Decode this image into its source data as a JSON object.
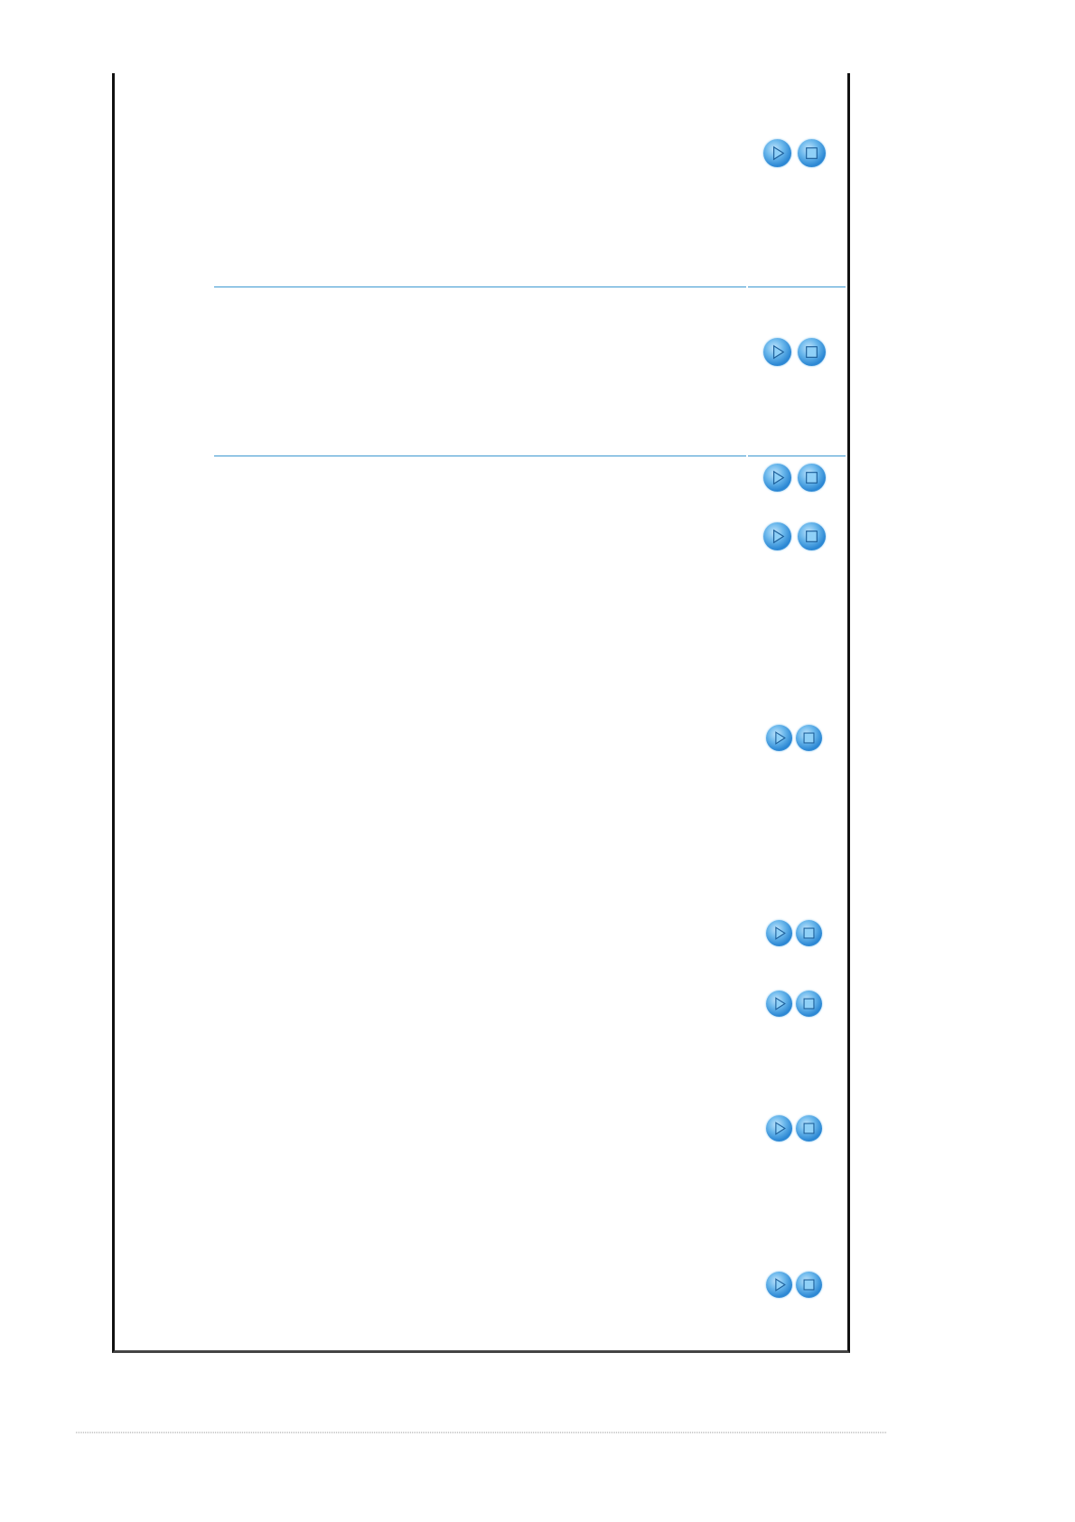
{
  "accent_color": "#3a97d0",
  "controls": [
    {
      "play_icon": "play-icon",
      "stop_icon": "stop-icon"
    },
    {
      "play_icon": "play-icon",
      "stop_icon": "stop-icon"
    },
    {
      "play_icon": "play-icon",
      "stop_icon": "stop-icon"
    },
    {
      "play_icon": "play-icon",
      "stop_icon": "stop-icon"
    },
    {
      "play_icon": "play-icon",
      "stop_icon": "stop-icon"
    },
    {
      "play_icon": "play-icon",
      "stop_icon": "stop-icon"
    },
    {
      "play_icon": "play-icon",
      "stop_icon": "stop-icon"
    },
    {
      "play_icon": "play-icon",
      "stop_icon": "stop-icon"
    },
    {
      "play_icon": "play-icon",
      "stop_icon": "stop-icon"
    }
  ]
}
